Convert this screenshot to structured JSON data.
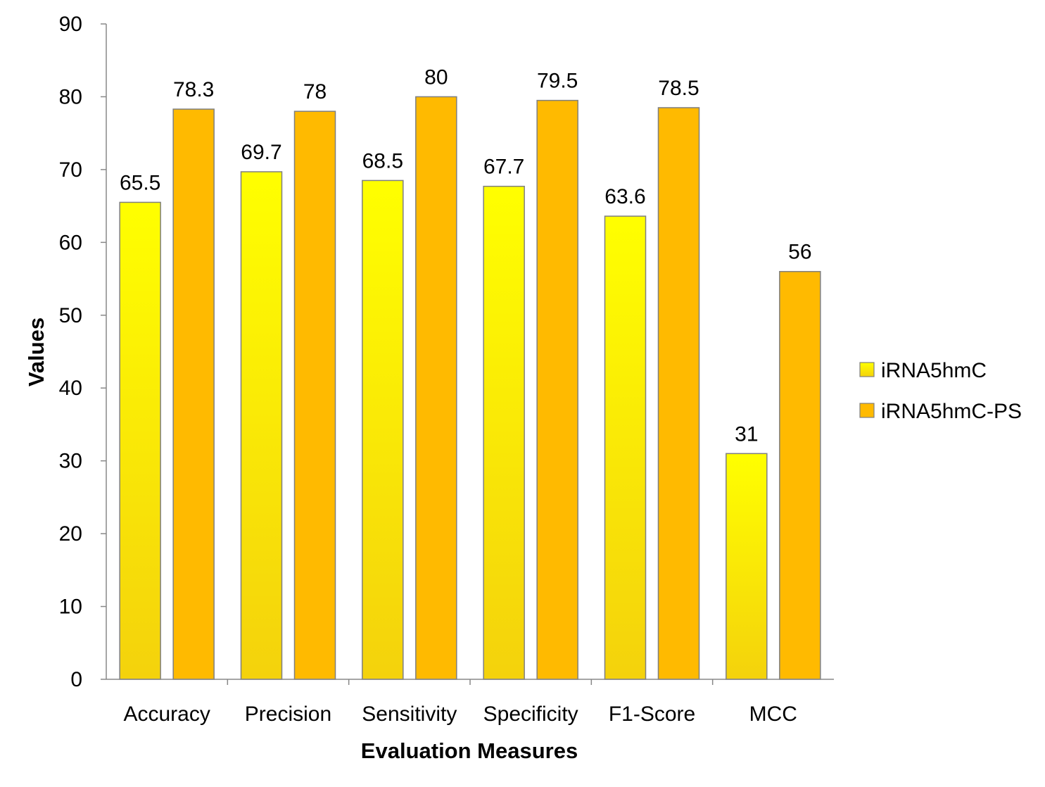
{
  "chart_data": {
    "type": "bar",
    "title": "",
    "xlabel": "Evaluation Measures",
    "ylabel": "Values",
    "categories": [
      "Accuracy",
      "Precision",
      "Sensitivity",
      "Specificity",
      "F1-Score",
      "MCC"
    ],
    "series": [
      {
        "name": "iRNA5hmC",
        "values": [
          65.5,
          69.7,
          68.5,
          67.7,
          63.6,
          31
        ],
        "labels": [
          "65.5",
          "69.7",
          "68.5",
          "67.7",
          "63.6",
          "31"
        ],
        "color_top": "#ffff00",
        "color_bottom": "#f4d20c"
      },
      {
        "name": "iRNA5hmC-PS",
        "values": [
          78.3,
          78,
          80,
          79.5,
          78.5,
          56
        ],
        "labels": [
          "78.3",
          "78",
          "80",
          "79.5",
          "78.5",
          "56"
        ],
        "color_top": "#ffba00",
        "color_bottom": "#ffba00"
      }
    ],
    "ylim": [
      0,
      90
    ],
    "yticks": [
      "0",
      "10",
      "20",
      "30",
      "40",
      "50",
      "60",
      "70",
      "80",
      "90"
    ],
    "grid": false,
    "legend_position": "right",
    "bar_border_color": "#7f7f7f",
    "axis_color": "#888888"
  }
}
